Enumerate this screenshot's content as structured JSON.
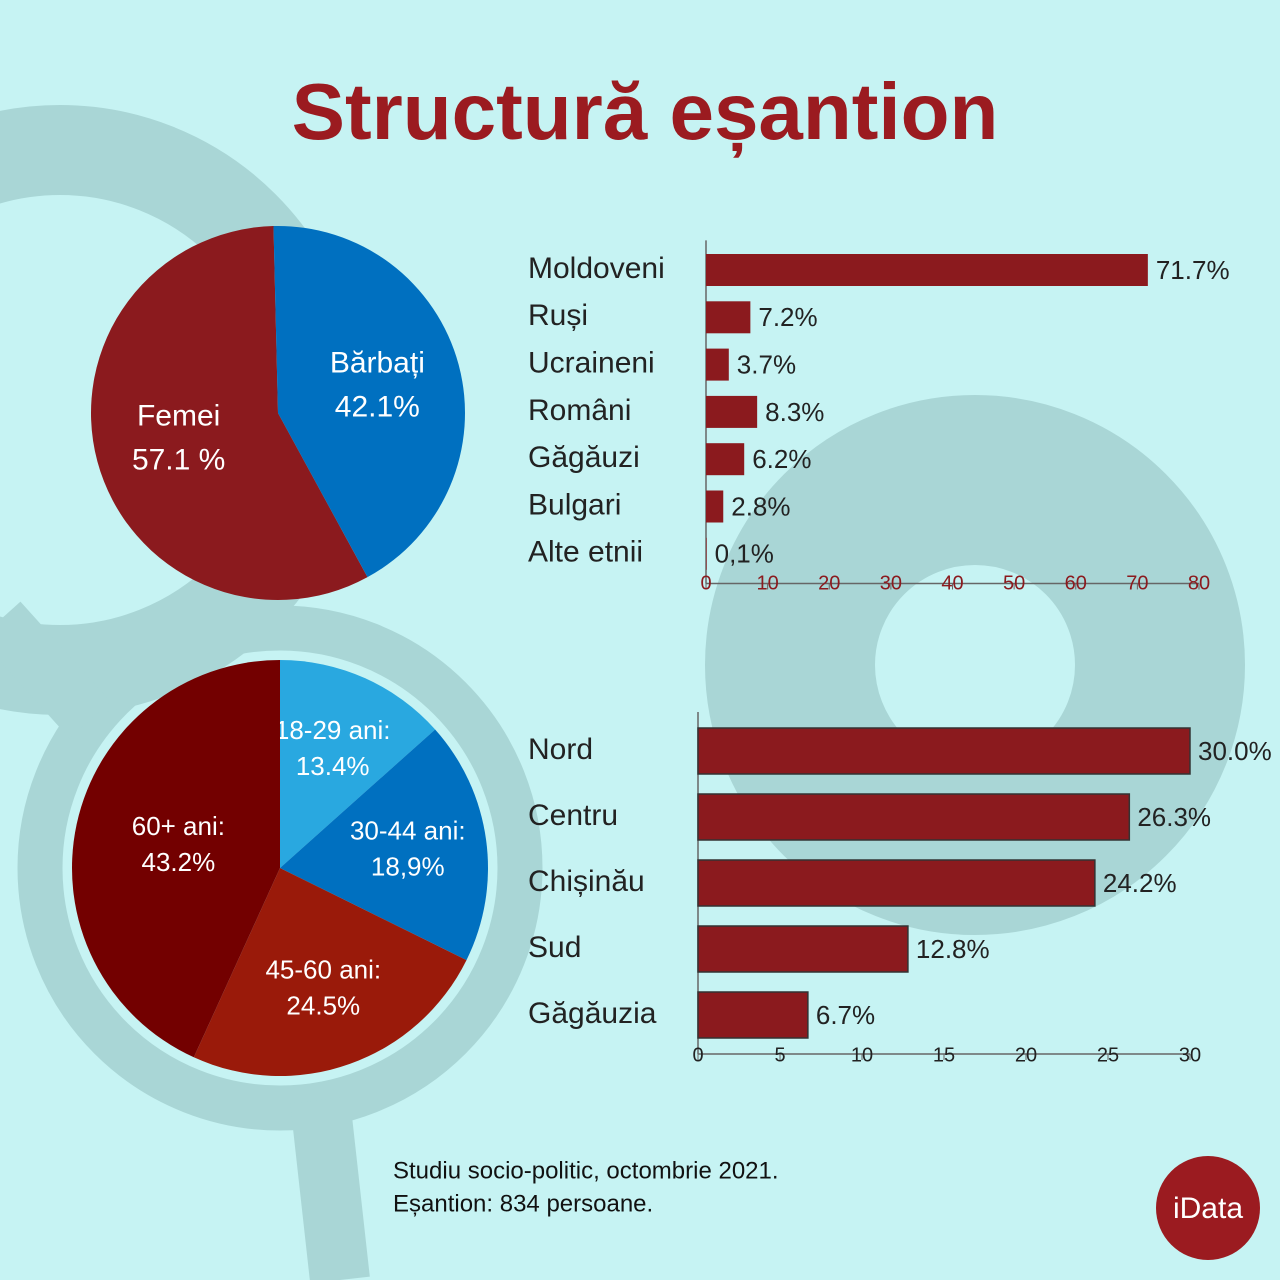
{
  "title": "Structură eșantion",
  "footnote": [
    "Studiu socio-politic, octombrie 2021.",
    "Eșantion: 834 persoane."
  ],
  "logo": "iData",
  "chart_data": [
    {
      "type": "pie",
      "categories": [
        "Femei",
        "Bărbați"
      ],
      "values": [
        57.1,
        42.1
      ],
      "value_labels": [
        "57.1 %",
        "42.1%"
      ],
      "colors": [
        "#8b1a1e",
        "#0070c0"
      ]
    },
    {
      "type": "bar",
      "orientation": "horizontal",
      "categories": [
        "Moldoveni",
        "Ruși",
        "Ucraineni",
        "Români",
        "Găgăuzi",
        "Bulgari",
        "Alte etnii"
      ],
      "values": [
        71.7,
        7.2,
        3.7,
        8.3,
        6.2,
        2.8,
        0.1
      ],
      "value_labels": [
        "71.7%",
        "7.2%",
        "3.7%",
        "8.3%",
        "6.2%",
        "2.8%",
        "0,1%"
      ],
      "color": "#8b1a1e",
      "xlim": [
        0,
        80
      ],
      "xticks": [
        0,
        10,
        20,
        30,
        40,
        50,
        60,
        70,
        80
      ],
      "tick_color": "#8b1a1e"
    },
    {
      "type": "pie",
      "categories": [
        "18-29 ani:",
        "30-44 ani:",
        "45-60 ani:",
        "60+ ani:"
      ],
      "values": [
        13.4,
        18.9,
        24.5,
        43.2
      ],
      "value_labels": [
        "13.4%",
        "18,9%",
        "24.5%",
        "43.2%"
      ],
      "colors": [
        "#29a8e0",
        "#0070c0",
        "#9a1a0a",
        "#730000"
      ]
    },
    {
      "type": "bar",
      "orientation": "horizontal",
      "categories": [
        "Nord",
        "Centru",
        "Chișinău",
        "Sud",
        "Găgăuzia"
      ],
      "values": [
        30.0,
        26.3,
        24.2,
        12.8,
        6.7
      ],
      "value_labels": [
        "30.0%",
        "26.3%",
        "24.2%",
        "12.8%",
        "6.7%"
      ],
      "color": "#8b1a1e",
      "xlim": [
        0,
        30
      ],
      "xticks": [
        0,
        5,
        10,
        15,
        20,
        25,
        30
      ],
      "tick_color": "#222222"
    }
  ]
}
